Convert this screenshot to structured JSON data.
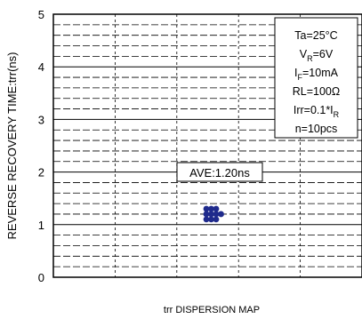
{
  "chart_data": {
    "type": "scatter",
    "ylabel": "REVERSE RECOVERY TIME:trr(ns)",
    "xlabel": "trr DISPERSION MAP",
    "ylim": [
      0,
      5
    ],
    "yticks": [
      "0",
      "1",
      "2",
      "3",
      "4",
      "5"
    ],
    "grid": true,
    "minor_grid_per_unit": 5,
    "points": [
      {
        "x": 1,
        "y": 1.1
      },
      {
        "x": 1,
        "y": 1.2
      },
      {
        "x": 1,
        "y": 1.3
      },
      {
        "x": 2,
        "y": 1.1
      },
      {
        "x": 2,
        "y": 1.2
      },
      {
        "x": 2,
        "y": 1.3
      },
      {
        "x": 3,
        "y": 1.1
      },
      {
        "x": 3,
        "y": 1.2
      },
      {
        "x": 3,
        "y": 1.3
      },
      {
        "x": 4,
        "y": 1.2
      }
    ],
    "point_color": "#1f2a8c",
    "annotation": "AVE:1.20ns",
    "conditions": [
      {
        "main": "Ta=25°C",
        "sub": "",
        "tail": ""
      },
      {
        "main": "V",
        "sub": "R",
        "tail": "=6V"
      },
      {
        "main": "I",
        "sub": "F",
        "tail": "=10mA"
      },
      {
        "main": "RL=100Ω",
        "sub": "",
        "tail": ""
      },
      {
        "main": "Irr=0.1*I",
        "sub": "R",
        "tail": ""
      },
      {
        "main": "n=10pcs",
        "sub": "",
        "tail": ""
      }
    ]
  }
}
